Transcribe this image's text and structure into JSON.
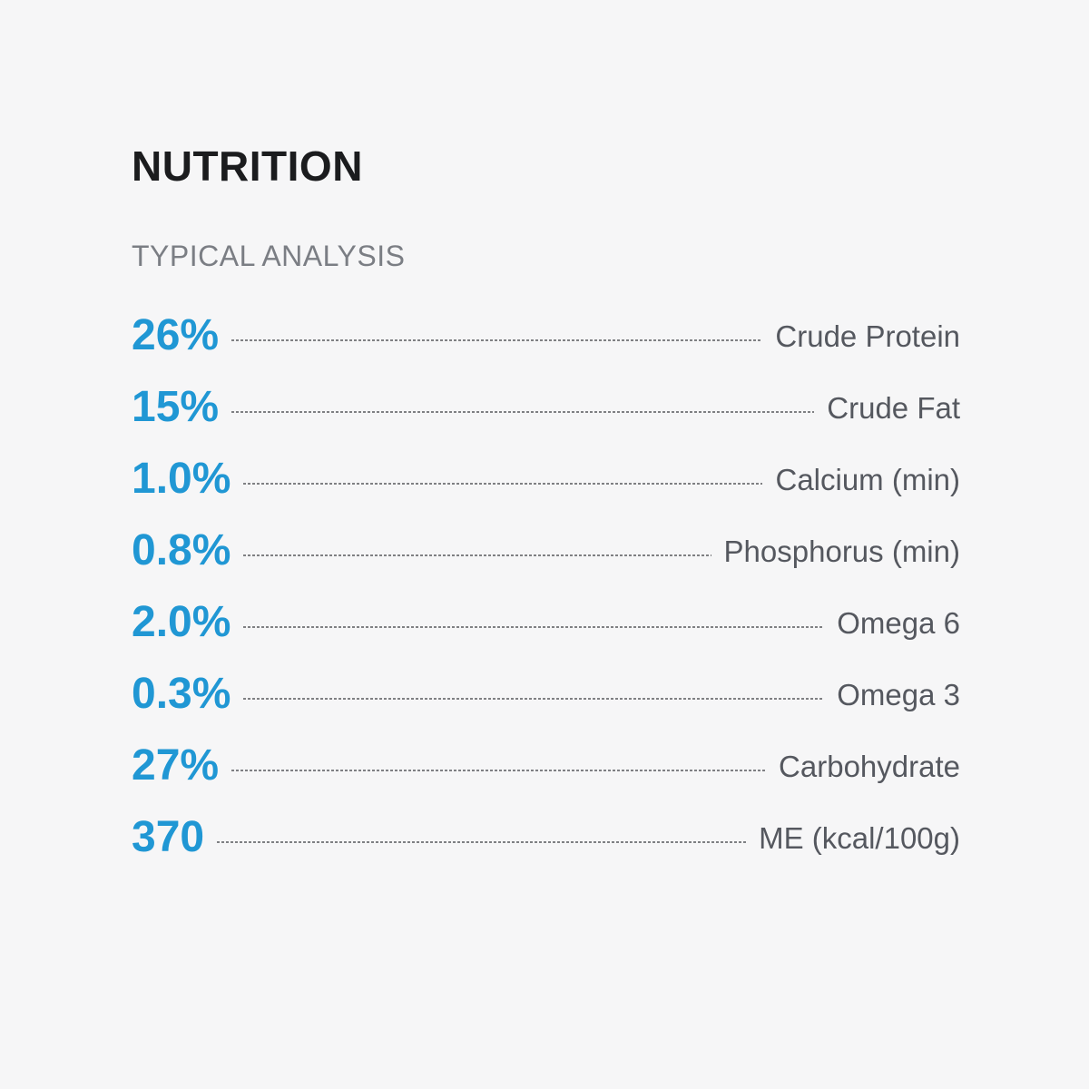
{
  "panel": {
    "title": "NUTRITION",
    "subtitle": "TYPICAL ANALYSIS",
    "rows": [
      {
        "value": "26%",
        "label": "Crude Protein"
      },
      {
        "value": "15%",
        "label": "Crude Fat"
      },
      {
        "value": "1.0%",
        "label": "Calcium (min)"
      },
      {
        "value": "0.8%",
        "label": "Phosphorus (min)"
      },
      {
        "value": "2.0%",
        "label": "Omega 6"
      },
      {
        "value": "0.3%",
        "label": "Omega 3"
      },
      {
        "value": "27%",
        "label": "Carbohydrate"
      },
      {
        "value": "370",
        "label": "ME (kcal/100g)"
      }
    ],
    "colors": {
      "background": "#f6f6f7",
      "title_dark": "#1b1c1e",
      "subtitle_gray": "#7b7e84",
      "value_blue": "#2097d4",
      "label_gray": "#55585f",
      "leader_gray": "#7f8083"
    }
  }
}
